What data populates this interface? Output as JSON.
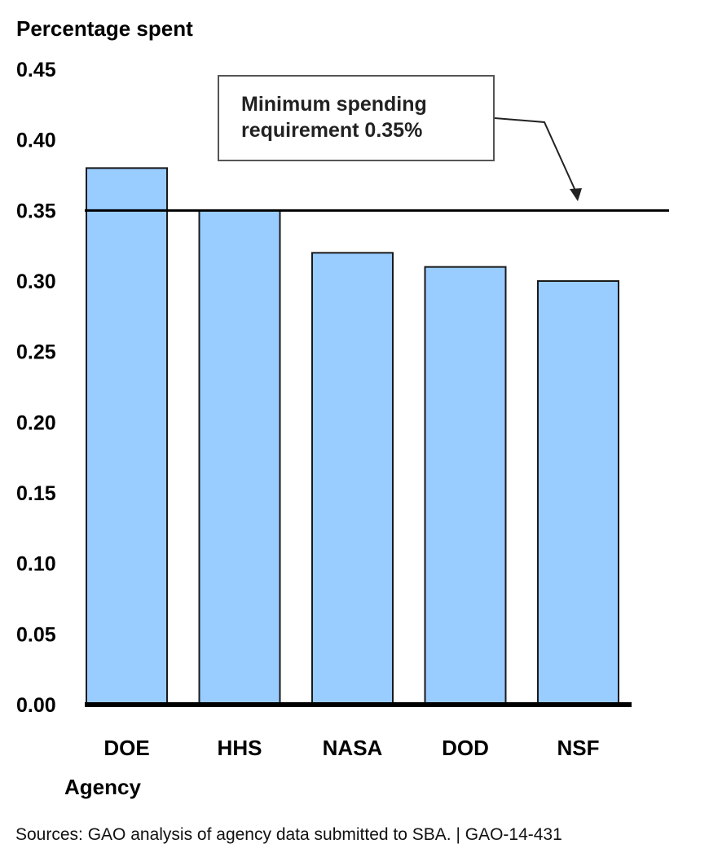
{
  "chart_data": {
    "type": "bar",
    "ylabel": "Percentage spent",
    "xlabel": "Agency",
    "categories": [
      "DOE",
      "HHS",
      "NASA",
      "DOD",
      "NSF"
    ],
    "values": [
      0.38,
      0.35,
      0.32,
      0.31,
      0.3
    ],
    "ylim": [
      0.0,
      0.45
    ],
    "yticks": [
      "0.00",
      "0.05",
      "0.10",
      "0.15",
      "0.20",
      "0.25",
      "0.30",
      "0.35",
      "0.40",
      "0.45"
    ],
    "grid": false,
    "reference_line": {
      "value": 0.35,
      "label_line1": "Minimum spending",
      "label_line2": "requirement 0.35%"
    },
    "colors": {
      "bar_fill": "#99ccff",
      "bar_stroke": "#1a1a1a",
      "axis": "#000000",
      "reference_line": "#000000"
    }
  },
  "source": "Sources: GAO analysis of agency data submitted to SBA. | GAO-14-431"
}
